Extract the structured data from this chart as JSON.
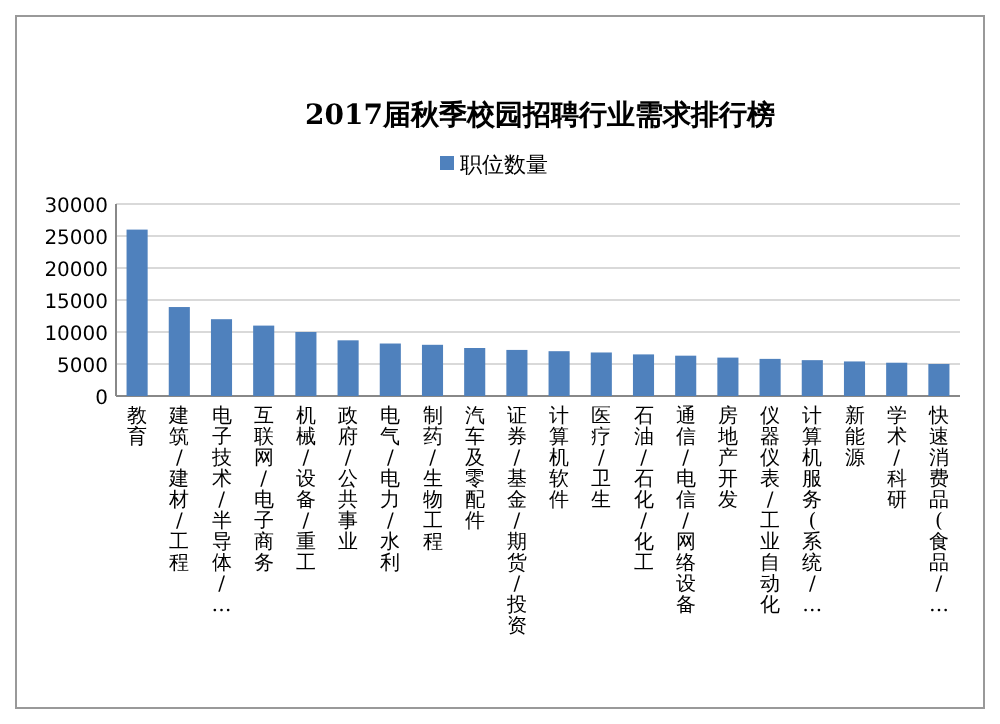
{
  "chart_data": {
    "type": "bar",
    "title": "2017届秋季校园招聘行业需求排行榜",
    "categories": [
      "教育",
      "建筑/建材/工程",
      "电子技术/半导体/…",
      "互联网/电子商务",
      "机械/设备/重工",
      "政府/公共事业",
      "电气/电力/水利",
      "制药/生物工程",
      "汽车及零配件",
      "证券/基金/期货/投资",
      "计算机软件",
      "医疗/卫生",
      "石油/石化/化工",
      "通信/电信/网络设备",
      "房地产开发",
      "仪器仪表/工业自动化",
      "计算机服务(系统/…",
      "新能源",
      "学术/科研",
      "快速消费品(食品/…"
    ],
    "series": [
      {
        "name": "职位数量",
        "color": "#4f81bd",
        "values": [
          26000,
          13900,
          12000,
          11000,
          10000,
          8700,
          8200,
          8000,
          7500,
          7200,
          7000,
          6800,
          6500,
          6300,
          6000,
          5800,
          5600,
          5400,
          5200,
          5000
        ]
      }
    ],
    "ylim": [
      0,
      30000
    ],
    "yticks": [
      0,
      5000,
      10000,
      15000,
      20000,
      25000,
      30000
    ],
    "grid": "y",
    "legend": "top"
  }
}
